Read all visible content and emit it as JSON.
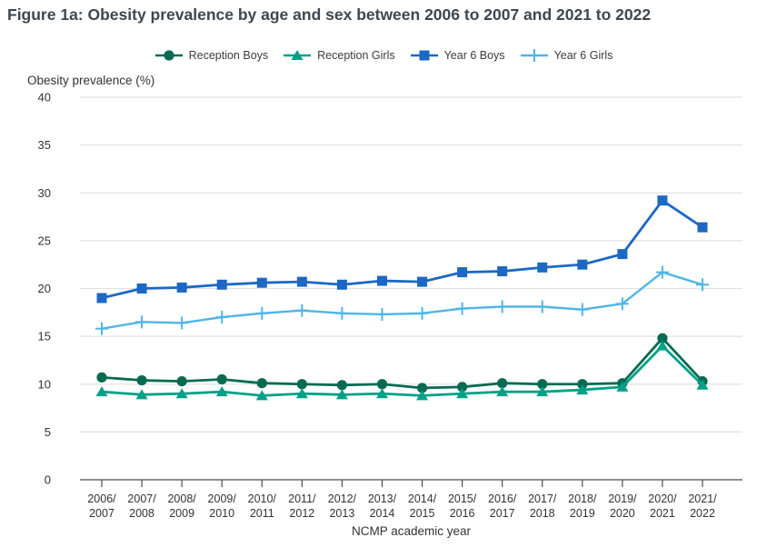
{
  "title": "Figure 1a: Obesity prevalence by age and sex between 2006 to 2007 and 2021 to 2022",
  "y_axis_label": "Obesity prevalence (%)",
  "x_axis_label": "NCMP academic year",
  "colors": {
    "reception_boys": "#086b51",
    "reception_girls": "#00a188",
    "year6_boys": "#1c68c4",
    "year6_girls": "#4fb6e7",
    "grid": "#e2e2e2",
    "axis": "#4d4d4d",
    "tick_text": "#333333",
    "title_text": "#3d474f"
  },
  "chart_data": {
    "type": "line",
    "title": "Figure 1a: Obesity prevalence by age and sex between 2006 to 2007 and 2021 to 2022",
    "xlabel": "NCMP academic year",
    "ylabel": "Obesity prevalence (%)",
    "ylim": [
      0,
      40
    ],
    "ytick_step": 5,
    "grid": true,
    "legend_position": "top",
    "categories": [
      "2006/2007",
      "2007/2008",
      "2008/2009",
      "2009/2010",
      "2010/2011",
      "2011/2012",
      "2012/2013",
      "2013/2014",
      "2014/2015",
      "2015/2016",
      "2016/2017",
      "2017/2018",
      "2018/2019",
      "2019/2020",
      "2020/2021",
      "2021/2022"
    ],
    "series": [
      {
        "name": "Reception Boys",
        "marker": "circle",
        "color": "#086b51",
        "values": [
          10.7,
          10.4,
          10.3,
          10.5,
          10.1,
          10.0,
          9.9,
          10.0,
          9.6,
          9.7,
          10.1,
          10.0,
          10.0,
          10.1,
          14.8,
          10.3
        ]
      },
      {
        "name": "Reception Girls",
        "marker": "triangle",
        "color": "#00a188",
        "values": [
          9.2,
          8.9,
          9.0,
          9.2,
          8.8,
          9.0,
          8.9,
          9.0,
          8.8,
          9.0,
          9.2,
          9.2,
          9.4,
          9.7,
          14.0,
          9.9
        ]
      },
      {
        "name": "Year 6 Boys",
        "marker": "square",
        "color": "#1c68c4",
        "values": [
          19.0,
          20.0,
          20.1,
          20.4,
          20.6,
          20.7,
          20.4,
          20.8,
          20.7,
          21.7,
          21.8,
          22.2,
          22.5,
          23.6,
          29.2,
          26.4
        ]
      },
      {
        "name": "Year 6 Girls",
        "marker": "plus",
        "color": "#4fb6e7",
        "values": [
          15.8,
          16.5,
          16.4,
          17.0,
          17.4,
          17.7,
          17.4,
          17.3,
          17.4,
          17.9,
          18.1,
          18.1,
          17.8,
          18.4,
          21.7,
          20.4
        ]
      }
    ]
  }
}
